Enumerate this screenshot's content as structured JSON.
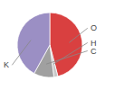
{
  "chart_data": {
    "type": "pie",
    "categories": [
      "O",
      "H",
      "C",
      "K"
    ],
    "values": [
      46.0,
      2.0,
      10.0,
      42.0
    ],
    "colors": [
      "#d94040",
      "#c8c8c8",
      "#a0a0a0",
      "#9b8fc4"
    ]
  }
}
